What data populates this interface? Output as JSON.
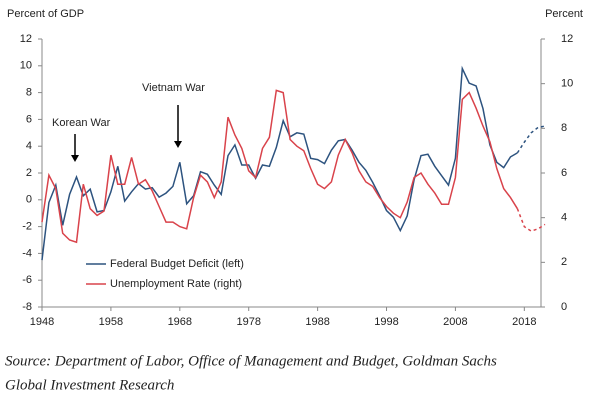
{
  "chart_data": {
    "type": "line",
    "y_label": "Percent of GDP",
    "y2_label": "Percent",
    "x": [
      1948,
      1949,
      1950,
      1951,
      1952,
      1953,
      1954,
      1955,
      1956,
      1957,
      1958,
      1959,
      1960,
      1961,
      1962,
      1963,
      1964,
      1965,
      1966,
      1967,
      1968,
      1969,
      1970,
      1971,
      1972,
      1973,
      1974,
      1975,
      1976,
      1977,
      1978,
      1979,
      1980,
      1981,
      1982,
      1983,
      1984,
      1985,
      1986,
      1987,
      1988,
      1989,
      1990,
      1991,
      1992,
      1993,
      1994,
      1995,
      1996,
      1997,
      1998,
      1999,
      2000,
      2001,
      2002,
      2003,
      2004,
      2005,
      2006,
      2007,
      2008,
      2009,
      2010,
      2011,
      2012,
      2013,
      2014,
      2015,
      2016,
      2017,
      2018,
      2019,
      2020,
      2021
    ],
    "xlim": [
      1948,
      2021
    ],
    "xticks": [
      1948,
      1958,
      1968,
      1978,
      1988,
      1998,
      2008,
      2018
    ],
    "ylim": [
      -8,
      12
    ],
    "yticks": [
      -8,
      -6,
      -4,
      -2,
      0,
      2,
      4,
      6,
      8,
      10,
      12
    ],
    "y2lim": [
      0,
      12
    ],
    "y2ticks": [
      0,
      2,
      4,
      6,
      8,
      10,
      12
    ],
    "series": [
      {
        "name": "Federal Budget Deficit (left)",
        "color": "#2d537f",
        "projected_from": 2017,
        "values": [
          -4.5,
          -0.2,
          1.1,
          -1.9,
          0.4,
          1.7,
          0.3,
          0.8,
          -0.9,
          -0.8,
          0.6,
          2.5,
          -0.1,
          0.6,
          1.2,
          0.8,
          0.9,
          0.2,
          0.5,
          1.0,
          2.8,
          -0.3,
          0.3,
          2.1,
          1.9,
          1.1,
          0.4,
          3.3,
          4.1,
          2.6,
          2.6,
          1.6,
          2.6,
          2.5,
          3.9,
          5.9,
          4.7,
          5.0,
          4.9,
          3.1,
          3.0,
          2.7,
          3.7,
          4.4,
          4.5,
          3.7,
          2.8,
          2.2,
          1.3,
          0.3,
          -0.8,
          -1.3,
          -2.3,
          -1.2,
          1.5,
          3.3,
          3.4,
          2.5,
          1.8,
          1.1,
          3.1,
          9.8,
          8.7,
          8.5,
          6.8,
          4.1,
          2.8,
          2.4,
          3.2,
          3.5,
          4.3,
          5.0,
          5.4,
          5.5
        ]
      },
      {
        "name": "Unemployment Rate (right)",
        "color": "#d9434b",
        "axis": "y2",
        "projected_from": 2017,
        "values": [
          3.8,
          5.9,
          5.3,
          3.3,
          3.0,
          2.9,
          5.5,
          4.4,
          4.1,
          4.3,
          6.8,
          5.5,
          5.5,
          6.7,
          5.5,
          5.7,
          5.2,
          4.5,
          3.8,
          3.8,
          3.6,
          3.5,
          4.9,
          5.9,
          5.6,
          4.9,
          5.6,
          8.5,
          7.7,
          7.1,
          6.1,
          5.8,
          7.1,
          7.6,
          9.7,
          9.6,
          7.5,
          7.2,
          7.0,
          6.2,
          5.5,
          5.3,
          5.6,
          6.8,
          7.5,
          6.9,
          6.1,
          5.6,
          5.4,
          4.9,
          4.5,
          4.2,
          4.0,
          4.7,
          5.8,
          6.0,
          5.5,
          5.1,
          4.6,
          4.6,
          5.8,
          9.3,
          9.6,
          8.9,
          8.1,
          7.4,
          6.2,
          5.3,
          4.9,
          4.4,
          3.6,
          3.4,
          3.5,
          3.7
        ]
      }
    ],
    "annotations": [
      {
        "text": "Korean War",
        "x": 1952
      },
      {
        "text": "Vietnam War",
        "x": 1967
      }
    ],
    "source": [
      "Source: Department of Labor, Office of Management and Budget, Goldman Sachs",
      "Global Investment Research"
    ]
  }
}
